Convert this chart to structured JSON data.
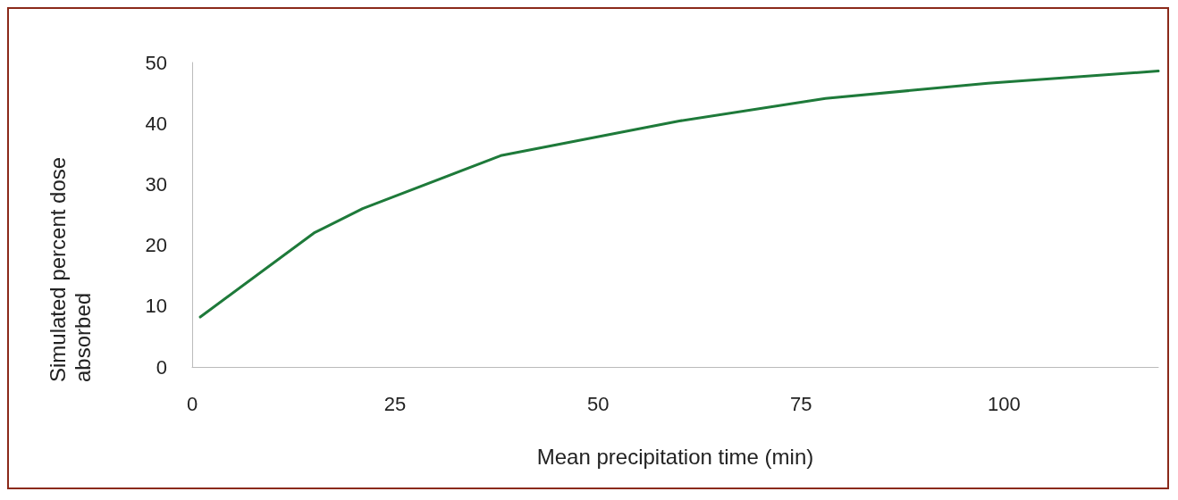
{
  "chart_data": {
    "type": "line",
    "xlabel": "Mean precipitation time (min)",
    "ylabel": "Simulated percent dose absorbed",
    "x": [
      1,
      15,
      21,
      38,
      60,
      78,
      98,
      119
    ],
    "series": [
      {
        "color": "#1e7a3a",
        "values": [
          8.2,
          22,
          26,
          34.7,
          40.4,
          44.1,
          46.6,
          48.6
        ]
      }
    ],
    "xlim": [
      0,
      119
    ],
    "xticks": [
      0,
      25,
      50,
      75,
      100
    ],
    "ylim": [
      0,
      50
    ],
    "yticks": [
      0,
      10,
      20,
      30,
      40,
      50
    ],
    "grid": false,
    "marker": "none",
    "line_style": "solid"
  }
}
